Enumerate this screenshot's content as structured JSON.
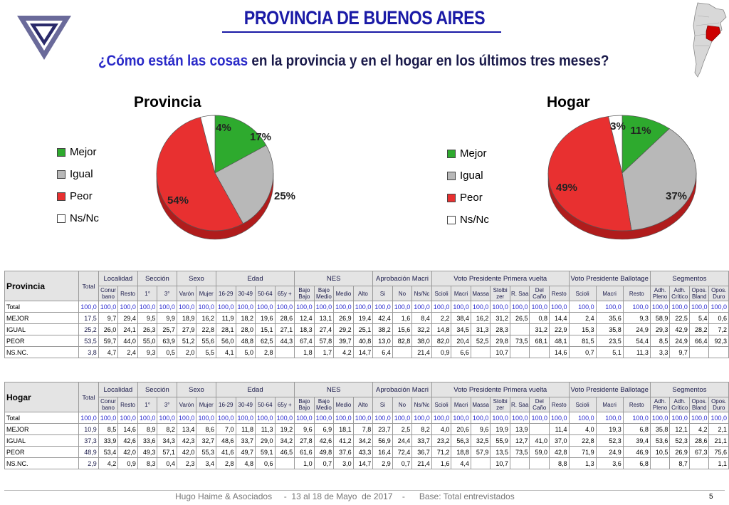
{
  "header": {
    "title": "PROVINCIA DE BUENOS AIRES",
    "subtitle_highlight": "¿Cómo están las cosas",
    "subtitle_rest": " en la provincia y en el hogar en los últimos tres meses?"
  },
  "colors": {
    "mejor": "#2eaa2e",
    "igual": "#b8b8b8",
    "peor": "#e83030",
    "nsnc": "#ffffff",
    "title": "#1a1aa6"
  },
  "chart_data": [
    {
      "type": "pie",
      "title": "Provincia",
      "legend": [
        "Mejor",
        "Igual",
        "Peor",
        "Ns/Nc"
      ],
      "legend_position": "left",
      "values": [
        17,
        25,
        54,
        4
      ],
      "labels": [
        "17%",
        "25%",
        "54%",
        "4%"
      ]
    },
    {
      "type": "pie",
      "title": "Hogar",
      "legend": [
        "Mejor",
        "Igual",
        "Peor",
        "Ns/Nc"
      ],
      "legend_position": "left",
      "values": [
        11,
        37,
        49,
        3
      ],
      "labels": [
        "11%",
        "37%",
        "49%",
        "3%"
      ]
    }
  ],
  "table_header": {
    "total": "Total",
    "groups": [
      {
        "label": "Localidad",
        "cols": [
          "Conur bano",
          "Resto"
        ]
      },
      {
        "label": "Sección",
        "cols": [
          "1°",
          "3°"
        ]
      },
      {
        "label": "Sexo",
        "cols": [
          "Varón",
          "Mujer"
        ]
      },
      {
        "label": "Edad",
        "cols": [
          "16-29",
          "30-49",
          "50-64",
          "65y +"
        ]
      },
      {
        "label": "NES",
        "cols": [
          "Bajo Bajo",
          "Bajo Medio",
          "Medio",
          "Alto"
        ]
      },
      {
        "label": "Aprobación Macri",
        "cols": [
          "Si",
          "No",
          "Ns/Nc"
        ]
      },
      {
        "label": "Voto Presidente Primera vuelta",
        "cols": [
          "Scioli",
          "Macri",
          "Massa",
          "Stolbi zer",
          "R. Saa",
          "Del Caño",
          "Resto"
        ]
      },
      {
        "label": "Voto Presidente Ballotage",
        "cols": [
          "Scioli",
          "Macri",
          "Resto"
        ]
      },
      {
        "label": "Segmentos",
        "cols": [
          "Adh. Pleno",
          "Adh. Crítico",
          "Opos. Bland",
          "Opos. Duro"
        ]
      }
    ]
  },
  "tables": [
    {
      "name": "Provincia",
      "rows": [
        {
          "label": "Total",
          "values": [
            "100,0",
            "100,0",
            "100,0",
            "100,0",
            "100,0",
            "100,0",
            "100,0",
            "100,0",
            "100,0",
            "100,0",
            "100,0",
            "100,0",
            "100,0",
            "100,0",
            "100,0",
            "100,0",
            "100,0",
            "100,0",
            "100,0",
            "100,0",
            "100,0",
            "100,0",
            "100,0",
            "100,0",
            "100,0",
            "100,0",
            "100,0",
            "100,0",
            "100,0",
            "100,0",
            "100,0",
            "100,0"
          ]
        },
        {
          "label": "MEJOR",
          "values": [
            "17,5",
            "9,7",
            "29,4",
            "9,5",
            "9,9",
            "18,9",
            "16,2",
            "11,9",
            "18,2",
            "19,6",
            "28,6",
            "12,4",
            "13,1",
            "26,9",
            "19,4",
            "42,4",
            "1,6",
            "8,4",
            "2,2",
            "38,4",
            "16,2",
            "31,2",
            "26,5",
            "0,8",
            "14,4",
            "2,4",
            "35,6",
            "9,3",
            "58,9",
            "22,5",
            "5,4",
            "0,6"
          ]
        },
        {
          "label": "IGUAL",
          "values": [
            "25,2",
            "26,0",
            "24,1",
            "26,3",
            "25,7",
            "27,9",
            "22,8",
            "28,1",
            "28,0",
            "15,1",
            "27,1",
            "18,3",
            "27,4",
            "29,2",
            "25,1",
            "38,2",
            "15,6",
            "32,2",
            "14,8",
            "34,5",
            "31,3",
            "28,3",
            "",
            "31,2",
            "22,9",
            "15,3",
            "35,8",
            "24,9",
            "29,3",
            "42,9",
            "28,2",
            "7,2"
          ]
        },
        {
          "label": "PEOR",
          "values": [
            "53,5",
            "59,7",
            "44,0",
            "55,0",
            "63,9",
            "51,2",
            "55,6",
            "56,0",
            "48,8",
            "62,5",
            "44,3",
            "67,4",
            "57,8",
            "39,7",
            "40,8",
            "13,0",
            "82,8",
            "38,0",
            "82,0",
            "20,4",
            "52,5",
            "29,8",
            "73,5",
            "68,1",
            "48,1",
            "81,5",
            "23,5",
            "54,4",
            "8,5",
            "24,9",
            "66,4",
            "92,3"
          ]
        },
        {
          "label": "NS.NC.",
          "values": [
            "3,8",
            "4,7",
            "2,4",
            "9,3",
            "0,5",
            "2,0",
            "5,5",
            "4,1",
            "5,0",
            "2,8",
            "",
            "1,8",
            "1,7",
            "4,2",
            "14,7",
            "6,4",
            "",
            "21,4",
            "0,9",
            "6,6",
            "",
            "10,7",
            "",
            "",
            "14,6",
            "0,7",
            "5,1",
            "11,3",
            "3,3",
            "9,7",
            "",
            ""
          ]
        }
      ]
    },
    {
      "name": "Hogar",
      "rows": [
        {
          "label": "Total",
          "values": [
            "100,0",
            "100,0",
            "100,0",
            "100,0",
            "100,0",
            "100,0",
            "100,0",
            "100,0",
            "100,0",
            "100,0",
            "100,0",
            "100,0",
            "100,0",
            "100,0",
            "100,0",
            "100,0",
            "100,0",
            "100,0",
            "100,0",
            "100,0",
            "100,0",
            "100,0",
            "100,0",
            "100,0",
            "100,0",
            "100,0",
            "100,0",
            "100,0",
            "100,0",
            "100,0",
            "100,0",
            "100,0"
          ]
        },
        {
          "label": "MEJOR",
          "values": [
            "10,9",
            "8,5",
            "14,6",
            "8,9",
            "8,2",
            "13,4",
            "8,6",
            "7,0",
            "11,8",
            "11,3",
            "19,2",
            "9,6",
            "6,9",
            "18,1",
            "7,8",
            "23,7",
            "2,5",
            "8,2",
            "4,0",
            "20,6",
            "9,6",
            "19,9",
            "13,9",
            "",
            "11,4",
            "4,0",
            "19,3",
            "6,8",
            "35,8",
            "12,1",
            "4,2",
            "2,1"
          ]
        },
        {
          "label": "IGUAL",
          "values": [
            "37,3",
            "33,9",
            "42,6",
            "33,6",
            "34,3",
            "42,3",
            "32,7",
            "48,6",
            "33,7",
            "29,0",
            "34,2",
            "27,8",
            "42,6",
            "41,2",
            "34,2",
            "56,9",
            "24,4",
            "33,7",
            "23,2",
            "56,3",
            "32,5",
            "55,9",
            "12,7",
            "41,0",
            "37,0",
            "22,8",
            "52,3",
            "39,4",
            "53,6",
            "52,3",
            "28,6",
            "21,1"
          ]
        },
        {
          "label": "PEOR",
          "values": [
            "48,9",
            "53,4",
            "42,0",
            "49,3",
            "57,1",
            "42,0",
            "55,3",
            "41,6",
            "49,7",
            "59,1",
            "46,5",
            "61,6",
            "49,8",
            "37,6",
            "43,3",
            "16,4",
            "72,4",
            "36,7",
            "71,2",
            "18,8",
            "57,9",
            "13,5",
            "73,5",
            "59,0",
            "42,8",
            "71,9",
            "24,9",
            "46,9",
            "10,5",
            "26,9",
            "67,3",
            "75,6"
          ]
        },
        {
          "label": "NS.NC.",
          "values": [
            "2,9",
            "4,2",
            "0,9",
            "8,3",
            "0,4",
            "2,3",
            "3,4",
            "2,8",
            "4,8",
            "0,6",
            "",
            "1,0",
            "0,7",
            "3,0",
            "14,7",
            "2,9",
            "0,7",
            "21,4",
            "1,6",
            "4,4",
            "",
            "10,7",
            "",
            "",
            "8,8",
            "1,3",
            "3,6",
            "6,8",
            "",
            "8,7",
            "",
            "1,1"
          ]
        }
      ]
    }
  ],
  "footer": {
    "text": "Hugo Haime & Asociados     -  13 al 18 de Mayo  de 2017    -      Base: Total entrevistados",
    "page": "5"
  }
}
